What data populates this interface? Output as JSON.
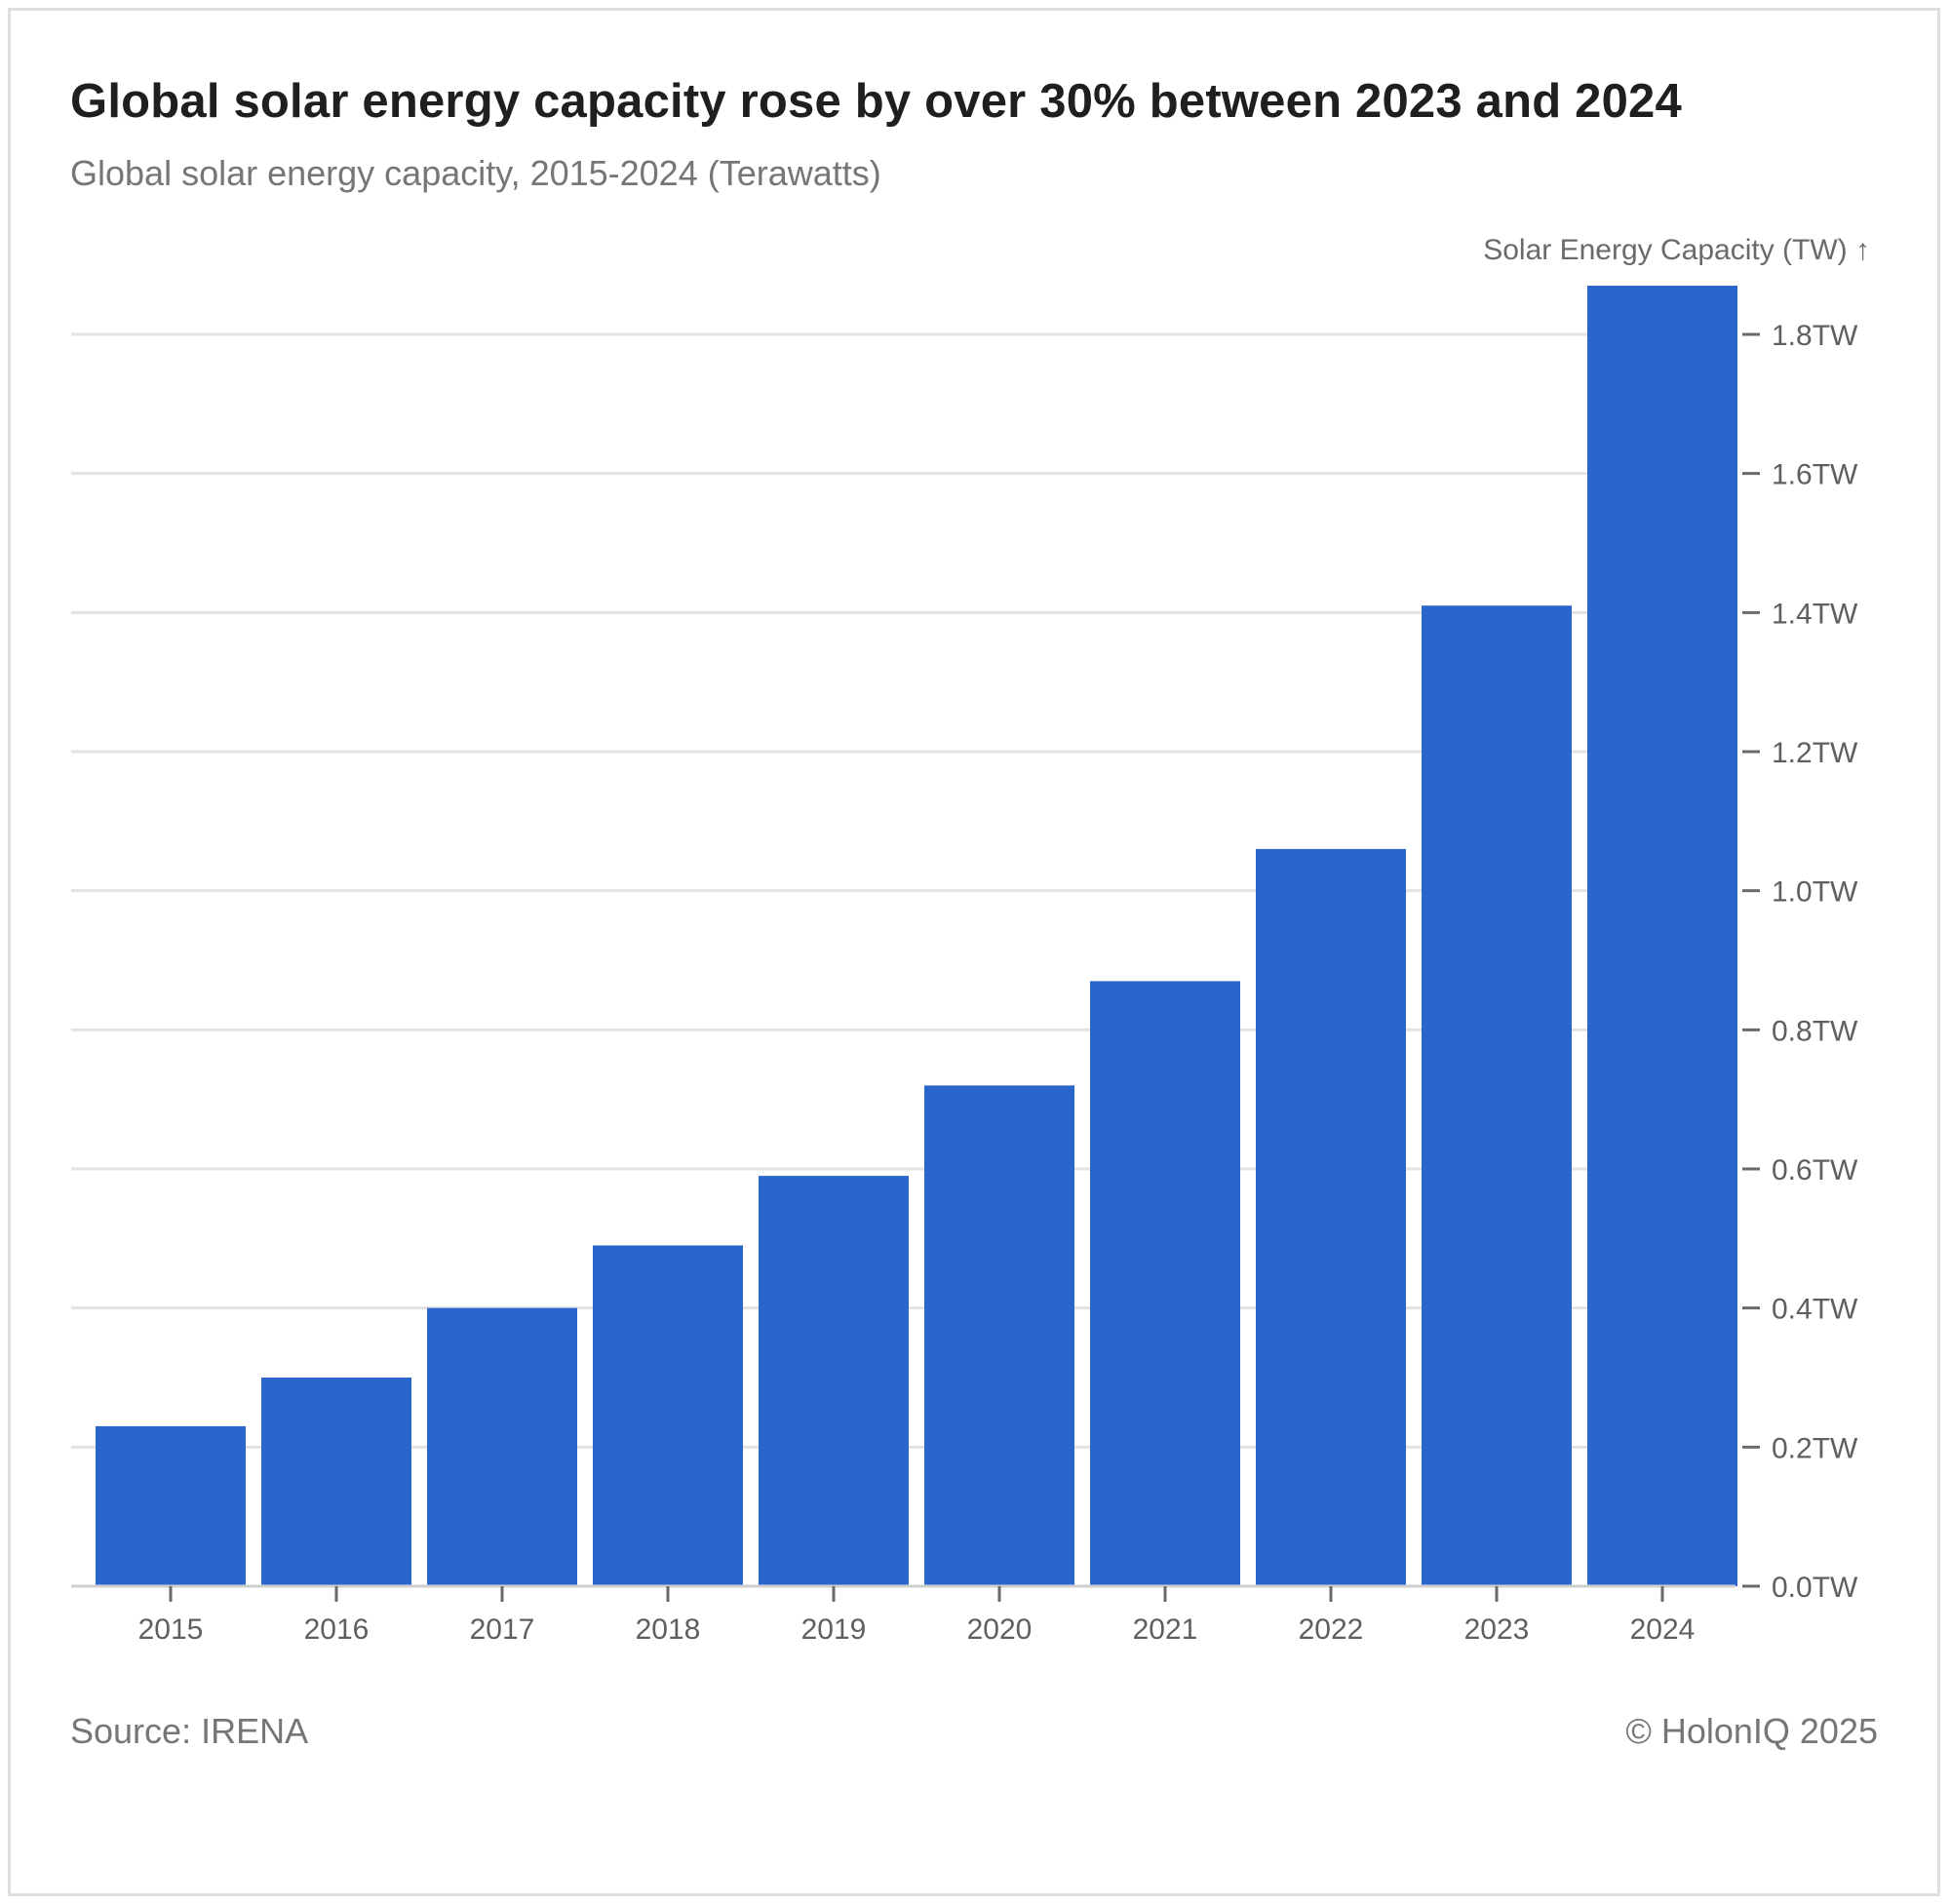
{
  "title": "Global solar energy capacity rose by over 30% between 2023 and 2024",
  "subtitle": "Global solar energy capacity, 2015-2024 (Terawatts)",
  "footer": {
    "source": "Source: IRENA",
    "copyright": "© HolonIQ 2025"
  },
  "colors": {
    "bar": "#2a65cc",
    "grid": "#e3e3e3",
    "axis": "#cfcfcf",
    "tick_text": "#5f5f5f"
  },
  "chart_data": {
    "type": "bar",
    "title": "Global solar energy capacity rose by over 30% between 2023 and 2024",
    "subtitle": "Global solar energy capacity, 2015-2024 (Terawatts)",
    "categories": [
      "2015",
      "2016",
      "2017",
      "2018",
      "2019",
      "2020",
      "2021",
      "2022",
      "2023",
      "2024"
    ],
    "values": [
      0.23,
      0.3,
      0.4,
      0.49,
      0.59,
      0.72,
      0.87,
      1.06,
      1.41,
      1.87
    ],
    "ylabel": "Solar Energy Capacity (TW) ↑",
    "y_axis_position": "right",
    "ylim": [
      0,
      1.87
    ],
    "yticks": [
      0.0,
      0.2,
      0.4,
      0.6,
      0.8,
      1.0,
      1.2,
      1.4,
      1.6,
      1.8
    ],
    "ytick_labels": [
      "0.0TW",
      "0.2TW",
      "0.4TW",
      "0.6TW",
      "0.8TW",
      "1.0TW",
      "1.2TW",
      "1.4TW",
      "1.6TW",
      "1.8TW"
    ],
    "grid": true,
    "legend": "none"
  }
}
